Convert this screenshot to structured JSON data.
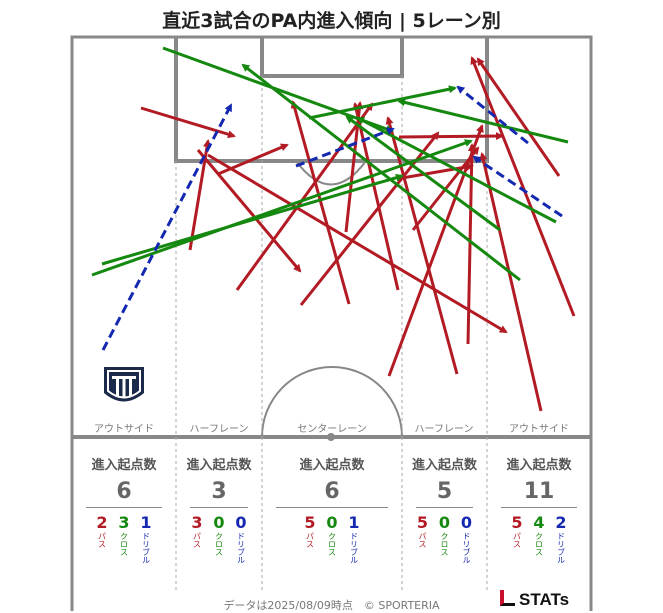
{
  "title": "直近3試合のPA内進入傾向 | 5レーン別",
  "lanes": [
    {
      "label": "アウトサイド",
      "header": "進入起点数",
      "total": "6",
      "pass": "2",
      "cross": "3",
      "dribble": "1"
    },
    {
      "label": "ハーフレーン",
      "header": "進入起点数",
      "total": "3",
      "pass": "3",
      "cross": "0",
      "dribble": "0"
    },
    {
      "label": "センターレーン",
      "header": "進入起点数",
      "total": "6",
      "pass": "5",
      "cross": "0",
      "dribble": "1"
    },
    {
      "label": "ハーフレーン",
      "header": "進入起点数",
      "total": "5",
      "pass": "5",
      "cross": "0",
      "dribble": "0"
    },
    {
      "label": "アウトサイド",
      "header": "進入起点数",
      "total": "11",
      "pass": "5",
      "cross": "4",
      "dribble": "2"
    }
  ],
  "type_labels": {
    "pass": "パス",
    "cross": "クロス",
    "dribble": "ドリブル"
  },
  "colors": {
    "pass": "#b31b24",
    "cross": "#14880f",
    "dribble": "#1428b0",
    "lines": "#888888"
  },
  "footer": "データは2025/08/09時点　© SPORTERIA",
  "brand": "STATs",
  "team_logo": "team-crest-icon"
}
